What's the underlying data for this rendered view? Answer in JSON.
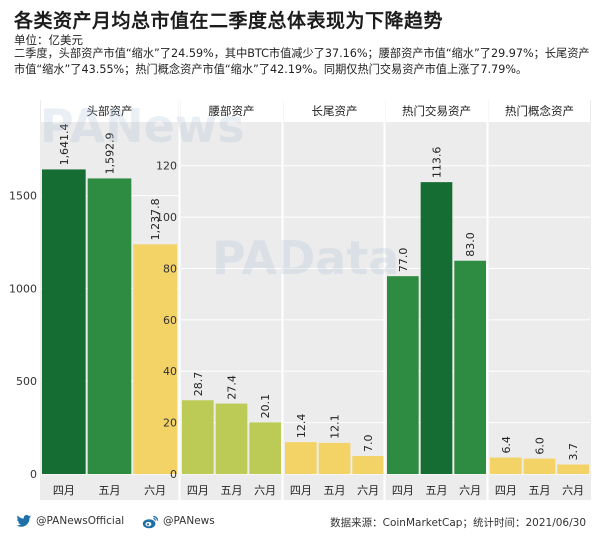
{
  "title": "各类资产月均总市值在二季度总体表现为下降趋势",
  "unit_label": "单位：亿美元",
  "description": "二季度，头部资产市值“缩水”了24.59%，其中BTC市值减少了37.16%；腰部资产市值“缩水”了29.97%；长尾资产市值“缩水”了43.55%；热门概念资产市值“缩水”了42.19%。同期仅热门交易资产市值上涨了7.79%。",
  "watermarks": [
    "PANews",
    "PAData"
  ],
  "colors": {
    "olive": "#bccb56",
    "darkgreen": "#166d33",
    "midgreen": "#2e8c42",
    "yellow": "#f3d266",
    "panel_bg": "#ececec",
    "grid": "#ffffff",
    "footer_bg": "#f2f2f2"
  },
  "chart_data": [
    {
      "type": "bar",
      "title": "头部资产",
      "categories": [
        "四月",
        "五月",
        "六月"
      ],
      "values": [
        1641.4,
        1592.9,
        1237.8
      ],
      "value_labels": [
        "1,641.4",
        "1,592.9",
        "1,237.8"
      ],
      "bar_colors": [
        "#166d33",
        "#2e8c42",
        "#f3d266"
      ],
      "ylim": [
        0,
        1800
      ],
      "yticks": [
        0,
        500,
        1000,
        1500
      ],
      "ytick_labels": [
        "0",
        "500",
        "1000",
        "1500"
      ],
      "grid": true
    },
    {
      "type": "bar",
      "title": "腰部资产",
      "categories": [
        "四月",
        "五月",
        "六月"
      ],
      "values": [
        28.7,
        27.4,
        20.1
      ],
      "value_labels": [
        "28.7",
        "27.4",
        "20.1"
      ],
      "bar_colors": [
        "#bccb56",
        "#bccb56",
        "#bccb56"
      ],
      "ylim": [
        0,
        130
      ],
      "yticks": [
        0,
        20,
        40,
        60,
        80,
        100,
        120
      ],
      "ytick_labels": [
        "0",
        "20",
        "40",
        "60",
        "80",
        "100",
        "120"
      ],
      "grid": true
    },
    {
      "type": "bar",
      "title": "长尾资产",
      "categories": [
        "四月",
        "五月",
        "六月"
      ],
      "values": [
        12.4,
        12.1,
        7.0
      ],
      "value_labels": [
        "12.4",
        "12.1",
        "7.0"
      ],
      "bar_colors": [
        "#f3d266",
        "#f3d266",
        "#f3d266"
      ],
      "ylim": [
        0,
        130
      ],
      "grid": true
    },
    {
      "type": "bar",
      "title": "热门交易资产",
      "categories": [
        "四月",
        "五月",
        "六月"
      ],
      "values": [
        77.0,
        113.6,
        83.0
      ],
      "value_labels": [
        "77.0",
        "113.6",
        "83.0"
      ],
      "bar_colors": [
        "#2e8c42",
        "#166d33",
        "#2e8c42"
      ],
      "ylim": [
        0,
        130
      ],
      "grid": true
    },
    {
      "type": "bar",
      "title": "热门概念资产",
      "categories": [
        "四月",
        "五月",
        "六月"
      ],
      "values": [
        6.4,
        6.0,
        3.7
      ],
      "value_labels": [
        "6.4",
        "6.0",
        "3.7"
      ],
      "bar_colors": [
        "#f3d266",
        "#f3d266",
        "#f3d266"
      ],
      "ylim": [
        0,
        130
      ],
      "grid": true
    }
  ],
  "footer": {
    "twitter_icon": "twitter-bird-icon",
    "twitter_handle": "@PANewsOfficial",
    "weibo_icon": "weibo-icon",
    "weibo_handle": "@PANews",
    "source": "数据来源：CoinMarketCap；统计时间：2021/06/30"
  }
}
